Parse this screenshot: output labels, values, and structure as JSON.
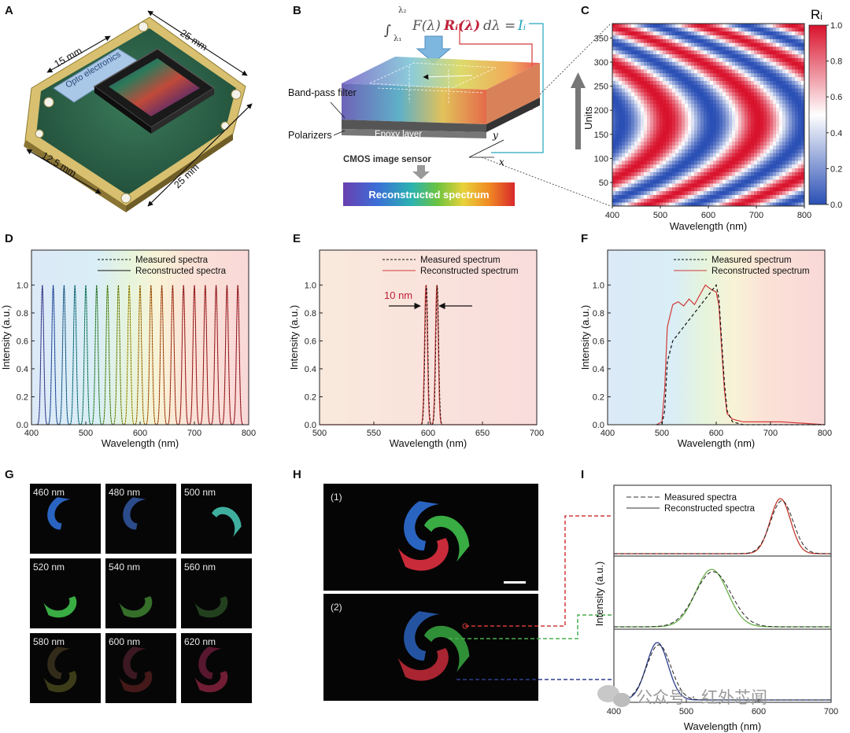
{
  "panel_labels": [
    "A",
    "B",
    "C",
    "D",
    "E",
    "F",
    "G",
    "H",
    "I"
  ],
  "panelA": {
    "chip_brand": "Opto electronics",
    "dims": [
      "15 mm",
      "25 mm",
      "12.5 mm",
      "25 mm"
    ]
  },
  "panelB": {
    "equation": {
      "integral": "∫",
      "upper": "λ₂",
      "lower": "λ₁",
      "body": "F(λ)",
      "R": "Rᵢ(λ)",
      "dlam": "dλ =",
      "I": "Iᵢ"
    },
    "labels": {
      "bandpass": "Band-pass filter",
      "polarizers": "Polarizers",
      "epoxy": "Epoxy layer",
      "cmos": "CMOS image sensor",
      "y": "y",
      "x": "x",
      "reconstructed": "Reconstructed spectrum"
    }
  },
  "chart_data": [
    {
      "panel": "C",
      "type": "heatmap",
      "xlabel": "Wavelength (nm)",
      "ylabel": "Units",
      "xlim": [
        400,
        800
      ],
      "ylim": [
        1,
        380
      ],
      "xticks": [
        400,
        500,
        600,
        700,
        800
      ],
      "yticks": [
        50,
        100,
        150,
        200,
        250,
        300,
        350
      ],
      "colorbar": {
        "label": "Rᵢ",
        "min": 0.0,
        "max": 1.0,
        "ticks": [
          "0.0",
          "0.2",
          "0.4",
          "0.6",
          "0.8",
          "1.0"
        ],
        "colors": [
          "#2a4fb5",
          "#ffffff",
          "#d9122c"
        ]
      }
    },
    {
      "panel": "D",
      "type": "line",
      "xlabel": "Wavelength (nm)",
      "ylabel": "Intensity (a.u.)",
      "xlim": [
        400,
        800
      ],
      "ylim": [
        0,
        1.25
      ],
      "xticks": [
        400,
        500,
        600,
        700,
        800
      ],
      "yticks": [
        "0.0",
        "0.2",
        "0.4",
        "0.6",
        "0.8",
        "1.0"
      ],
      "legend": [
        "Measured spectra",
        "Reconstructed spectra"
      ],
      "peak_centers": [
        420,
        440,
        460,
        480,
        500,
        520,
        540,
        560,
        580,
        600,
        620,
        640,
        660,
        680,
        700,
        720,
        740,
        760,
        780
      ],
      "peak_fwhm_nm": 6
    },
    {
      "panel": "E",
      "type": "line",
      "xlabel": "Wavelength (nm)",
      "ylabel": "Intensity (a.u.)",
      "xlim": [
        500,
        700
      ],
      "ylim": [
        0,
        1.25
      ],
      "xticks": [
        500,
        550,
        600,
        650,
        700
      ],
      "yticks": [
        "0.0",
        "0.2",
        "0.4",
        "0.6",
        "0.8",
        "1.0"
      ],
      "legend": [
        "Measured spectrum",
        "Reconstructed spectrum"
      ],
      "peaks": [
        {
          "center": 598,
          "height": 1.0
        },
        {
          "center": 608,
          "height": 1.0
        }
      ],
      "annotation": "10 nm"
    },
    {
      "panel": "F",
      "type": "line",
      "xlabel": "Wavelength (nm)",
      "ylabel": "Intensity (a.u.)",
      "xlim": [
        400,
        800
      ],
      "ylim": [
        0,
        1.25
      ],
      "xticks": [
        400,
        500,
        600,
        700,
        800
      ],
      "yticks": [
        "0.0",
        "0.2",
        "0.4",
        "0.6",
        "0.8",
        "1.0"
      ],
      "legend": [
        "Measured spectrum",
        "Reconstructed spectrum"
      ],
      "measured": {
        "x": [
          490,
          500,
          505,
          510,
          520,
          530,
          540,
          550,
          560,
          570,
          580,
          590,
          600,
          605,
          610,
          615,
          620,
          630,
          650,
          700,
          800
        ],
        "y": [
          0,
          0,
          0.1,
          0.45,
          0.6,
          0.65,
          0.7,
          0.75,
          0.8,
          0.85,
          0.9,
          0.95,
          1.0,
          0.9,
          0.6,
          0.3,
          0.1,
          0.02,
          0,
          0,
          0
        ]
      },
      "reconstructed": {
        "x": [
          490,
          500,
          505,
          510,
          520,
          530,
          540,
          550,
          560,
          570,
          580,
          590,
          600,
          605,
          610,
          615,
          620,
          630,
          650,
          700,
          720,
          800
        ],
        "y": [
          0,
          0.02,
          0.25,
          0.7,
          0.86,
          0.88,
          0.85,
          0.9,
          0.86,
          0.93,
          1.0,
          0.97,
          0.95,
          0.85,
          0.55,
          0.25,
          0.08,
          0.04,
          0.02,
          0.02,
          0.02,
          0
        ]
      }
    },
    {
      "panel": "I",
      "type": "line",
      "xlabel": "Wavelength (nm)",
      "ylabel": "Intensity (a.u.)",
      "xlim": [
        400,
        700
      ],
      "xticks": [
        400,
        500,
        600,
        700
      ],
      "legend": [
        "Measured spectra",
        "Reconstructed spectra"
      ],
      "series": [
        {
          "color": "#c0392b",
          "center": 630,
          "sigma": 14
        },
        {
          "color": "#6ab04c",
          "center": 535,
          "sigma": 22
        },
        {
          "color": "#2c3e8c",
          "center": 460,
          "sigma": 15
        }
      ]
    }
  ],
  "panelG": {
    "tiles": [
      "460 nm",
      "480 nm",
      "500 nm",
      "520 nm",
      "540 nm",
      "560 nm",
      "580 nm",
      "600 nm",
      "620 nm"
    ]
  },
  "panelH": {
    "labels": [
      "(1)",
      "(2)"
    ]
  },
  "watermark": "公众号 · 红外芯闻"
}
